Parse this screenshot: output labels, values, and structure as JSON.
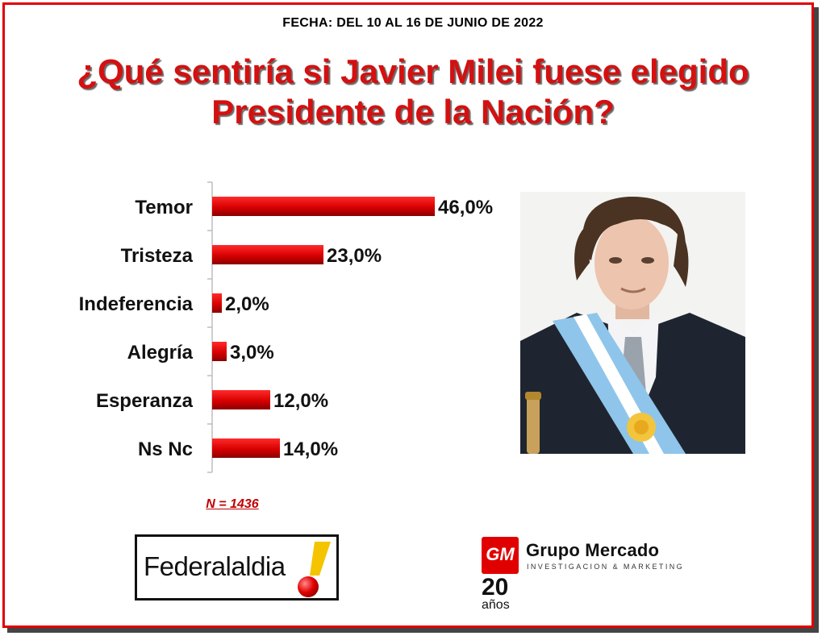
{
  "header": {
    "date": "FECHA: DEL 10 AL 16 DE JUNIO DE 2022",
    "title_line1": "¿Qué sentiría si Javier Milei fuese elegido",
    "title_line2": "Presidente de la Nación?"
  },
  "chart_data": {
    "type": "bar",
    "orientation": "horizontal",
    "categories": [
      "Temor",
      "Tristeza",
      "Indeferencia",
      "Alegría",
      "Esperanza",
      "Ns Nc"
    ],
    "values": [
      46.0,
      23.0,
      2.0,
      3.0,
      12.0,
      14.0
    ],
    "value_labels": [
      "46,0%",
      "23,0%",
      "2,0%",
      "3,0%",
      "12,0%",
      "14,0%"
    ],
    "xlim": [
      0,
      100
    ],
    "bar_color": "#e00000",
    "grid": false
  },
  "sample_note": "N = 1436",
  "logos": {
    "federalaldia": "Federalaldia",
    "grupo_mercado": {
      "mark": "GM",
      "name": "Grupo Mercado",
      "tagline": "INVESTIGACION & MARKETING",
      "years": "20",
      "years_word": "años"
    }
  },
  "colors": {
    "accent": "#d41010",
    "frame": "#e00000"
  },
  "photo": {
    "subject_icon": "portrait-photo"
  }
}
